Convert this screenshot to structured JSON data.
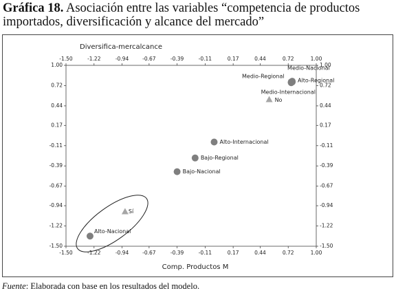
{
  "chart_data": {
    "type": "scatter",
    "title_prefix": "Gráfica 18.",
    "title": "Asociación entre las variables “competencia de productos importados, diversificación y alcance del mercado”",
    "ylabel": "Diversifica-mercalcance",
    "xlabel": "Comp. Productos M",
    "source_label": "Fuente",
    "source": ": Elaborada con base en los resultados del modelo.",
    "xlim": [
      -1.5,
      1.0
    ],
    "ylim": [
      -1.5,
      1.0
    ],
    "xticks": [
      {
        "value": -1.5,
        "label": "-1.50"
      },
      -1.22,
      -0.94,
      -0.67,
      -0.39,
      -0.11,
      0.17,
      0.44,
      0.72,
      {
        "value": 1.0,
        "label": "1.00"
      }
    ],
    "yticks": [
      {
        "value": -1.5,
        "label": "-1.50"
      },
      -1.22,
      -0.94,
      -0.67,
      -0.39,
      -0.11,
      0.17,
      0.44,
      0.72,
      {
        "value": 1.0,
        "label": "1.00"
      }
    ],
    "series": [
      {
        "marker": "circle",
        "color": "#7f7f7f",
        "labels": [
          "Alto-Nacional",
          "Bajo-Nacional",
          "Bajo-Regional",
          "Alto-Internacional",
          "Medio-Nacional",
          "Medio-Regional",
          "Medio-Internacional",
          "Alto-Regional"
        ],
        "x": [
          -1.26,
          -0.39,
          -0.21,
          -0.02,
          0.76,
          0.75,
          0.75,
          0.76
        ],
        "y": [
          -1.36,
          -0.47,
          -0.28,
          -0.06,
          0.78,
          0.77,
          0.76,
          0.77
        ]
      },
      {
        "marker": "triangle",
        "color": "#a6a6a6",
        "labels": [
          "Sí",
          "No"
        ],
        "x": [
          -0.91,
          0.53
        ],
        "y": [
          -1.02,
          0.53
        ]
      }
    ]
  }
}
